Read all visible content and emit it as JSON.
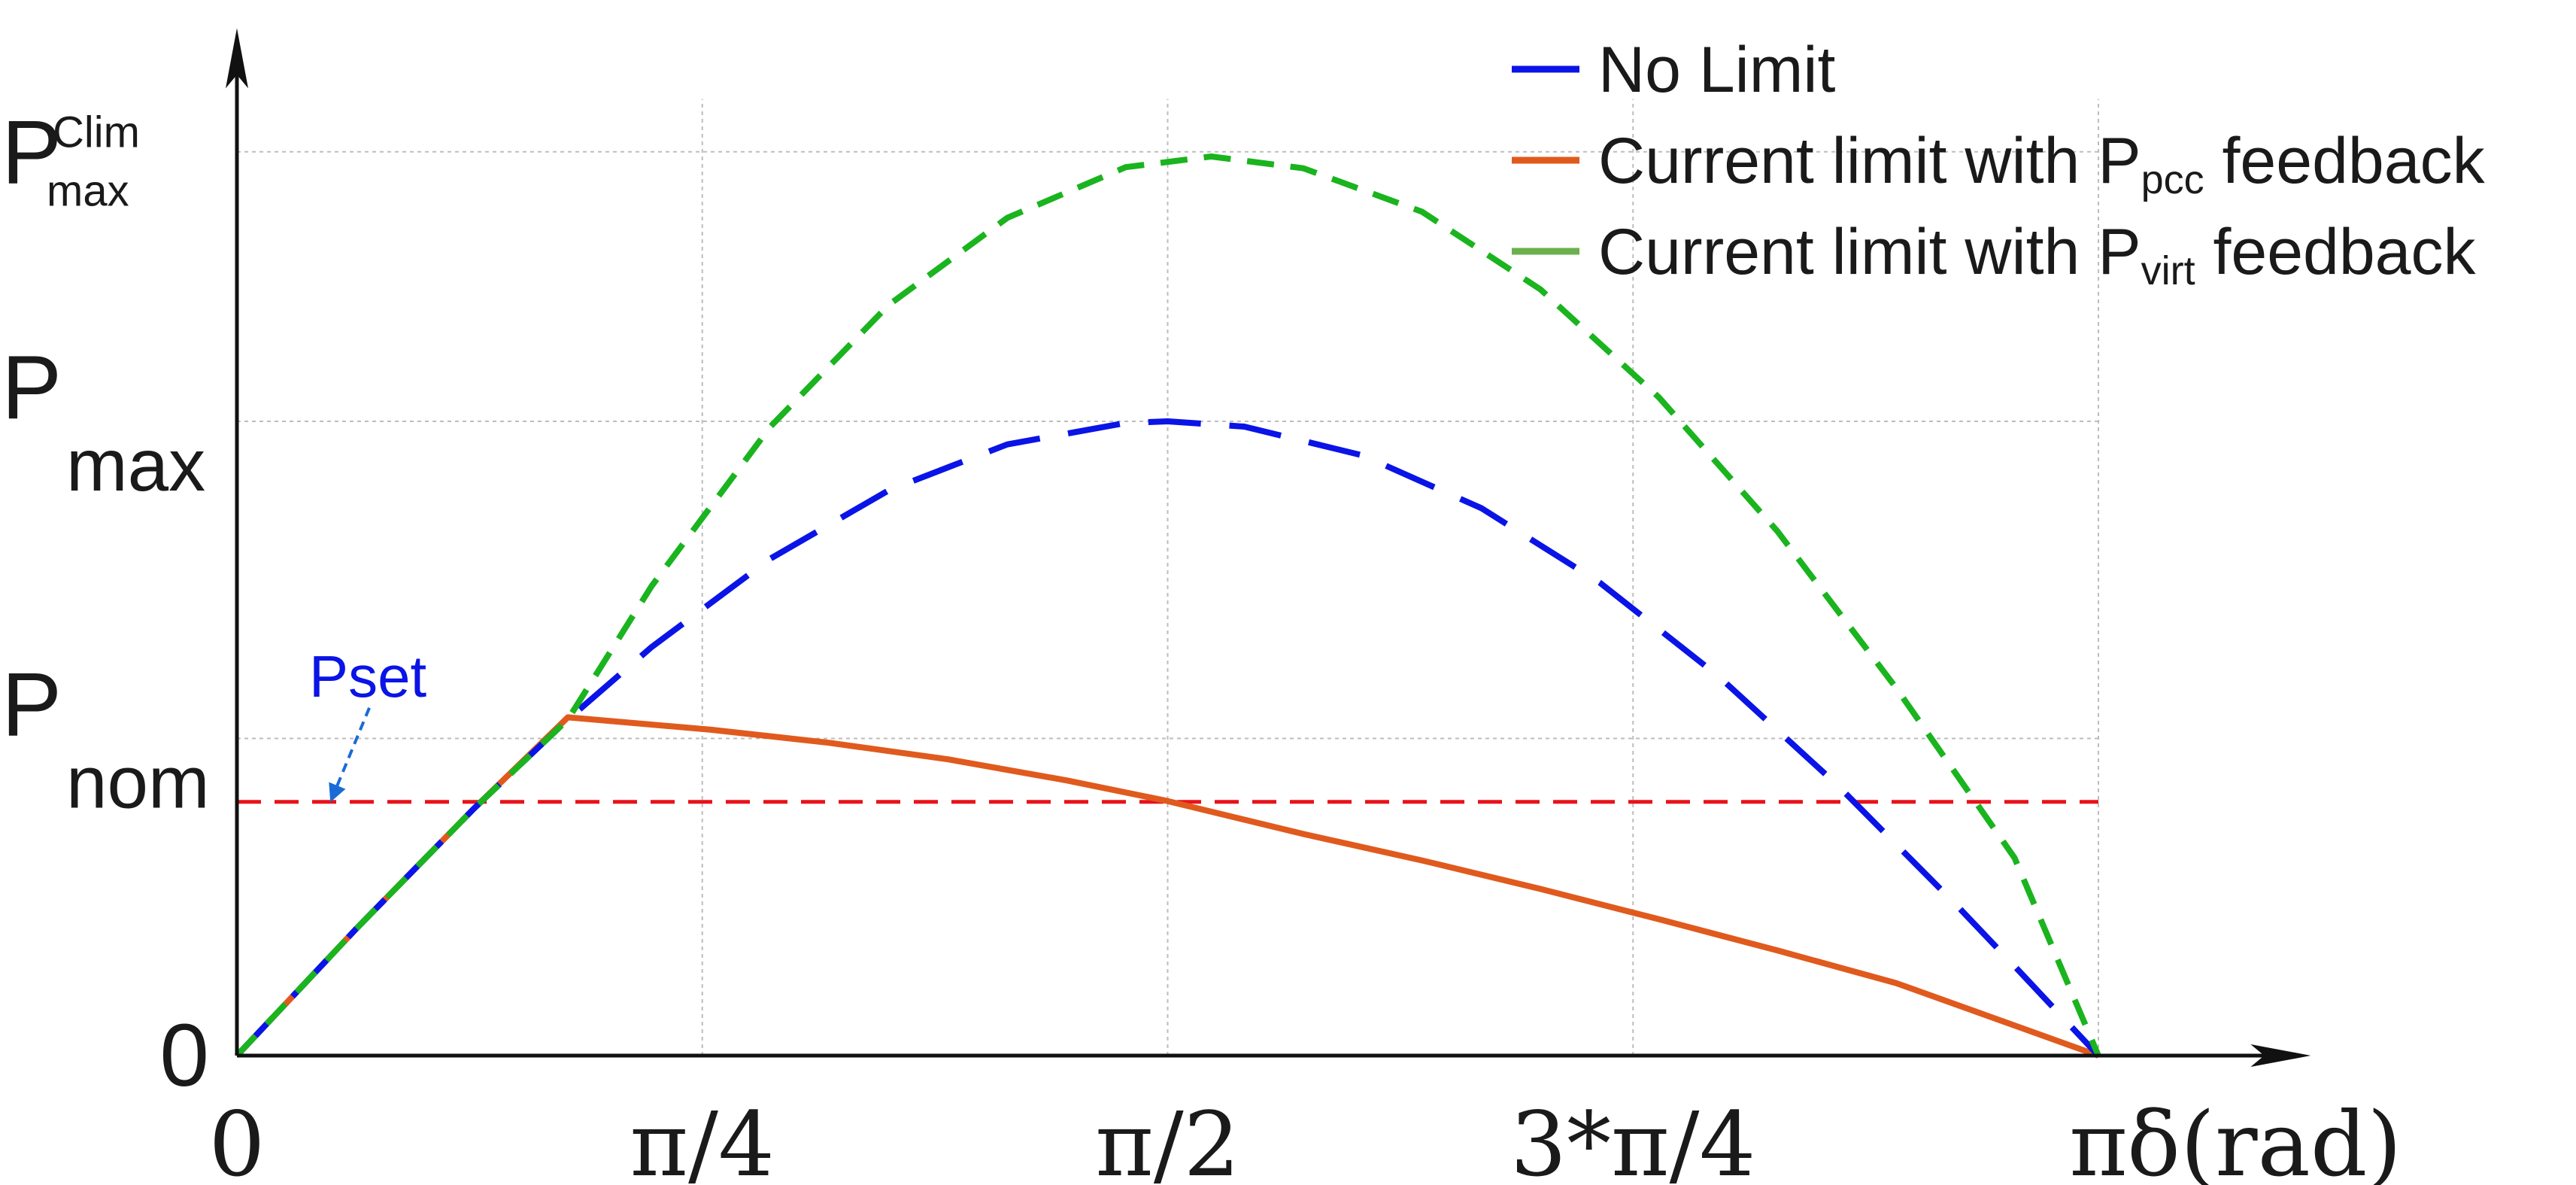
{
  "chart_data": {
    "type": "line",
    "title": "",
    "xlabel": "δ(rad)",
    "ylabel": "",
    "xlim": [
      0,
      3.5
    ],
    "ylim": [
      0,
      1.62
    ],
    "grid": true,
    "legend_position": "top-right",
    "x_ticks": [
      {
        "value": 0,
        "label": "0"
      },
      {
        "value": 0.7854,
        "label": "π/4"
      },
      {
        "value": 1.5708,
        "label": "π/2"
      },
      {
        "value": 2.3562,
        "label": "3*π/4"
      },
      {
        "value": 3.1416,
        "label": "π"
      }
    ],
    "y_ticks": [
      {
        "value": 0,
        "main": "0",
        "sub": "",
        "sup": ""
      },
      {
        "value": 0.5,
        "main": "P",
        "sub": "nom",
        "sup": ""
      },
      {
        "value": 1.0,
        "main": "P",
        "sub": "max",
        "sup": ""
      },
      {
        "value": 1.425,
        "main": "P",
        "sub": "max",
        "sup": "Clim"
      }
    ],
    "series": [
      {
        "name": "No Limit",
        "legend_main": "No Limit",
        "legend_sub": "",
        "legend_tail": "",
        "color": "#0a14e6",
        "style": "dashed",
        "legend_style": "solid",
        "x": [
          0,
          0.2,
          0.4,
          0.5585,
          0.7,
          0.9,
          1.1,
          1.3,
          1.5,
          1.5708,
          1.7,
          1.9,
          2.1,
          2.3,
          2.5,
          2.7,
          2.9,
          3.0,
          3.1416
        ],
        "y": [
          0,
          0.1987,
          0.3894,
          0.5299,
          0.6442,
          0.7833,
          0.8912,
          0.9636,
          0.9975,
          1.0,
          0.9917,
          0.9463,
          0.8632,
          0.7457,
          0.5985,
          0.4274,
          0.2392,
          0.1411,
          0
        ]
      },
      {
        "name": "Current limit with P_pcc feedback",
        "legend_main": "Current limit with P",
        "legend_sub": "pcc",
        "legend_tail": " feedback",
        "color": "#e05a1e",
        "style": "solid",
        "legend_style": "solid",
        "x": [
          0,
          0.2,
          0.4,
          0.5585,
          0.8,
          1.0,
          1.2,
          1.4,
          1.5708,
          1.8,
          2.0,
          2.2,
          2.4,
          2.6,
          2.8,
          3.0,
          3.1416
        ],
        "y": [
          0,
          0.1987,
          0.3894,
          0.5333,
          0.5138,
          0.4931,
          0.4672,
          0.4339,
          0.4013,
          0.3493,
          0.3077,
          0.2627,
          0.215,
          0.1657,
          0.1144,
          0.0475,
          0
        ]
      },
      {
        "name": "Current limit with P_virt feedback",
        "legend_main": "Current limit with P",
        "legend_sub": "virt",
        "legend_tail": " feedback",
        "color": "#1ab41e",
        "style": "dashed",
        "legend_style": "solid",
        "legend_color": "#6ab04c",
        "x": [
          0,
          0.2,
          0.4,
          0.5585,
          0.7,
          0.9,
          1.1,
          1.3,
          1.5,
          1.6442,
          1.8,
          2.0,
          2.2,
          2.4,
          2.6,
          2.8,
          3.0,
          3.1416
        ],
        "y": [
          0,
          0.1987,
          0.3894,
          0.5299,
          0.7405,
          0.9912,
          1.1835,
          1.3207,
          1.4007,
          1.4175,
          1.3989,
          1.3305,
          1.208,
          1.0376,
          0.8266,
          0.58,
          0.3117,
          0
        ]
      }
    ],
    "reference_lines": [
      {
        "orientation": "horizontal",
        "value": 0.4,
        "color": "#e8121a",
        "style": "dashed",
        "label": "Pset",
        "label_color": "#0a14e6",
        "pointer_x": 0.16
      }
    ]
  }
}
